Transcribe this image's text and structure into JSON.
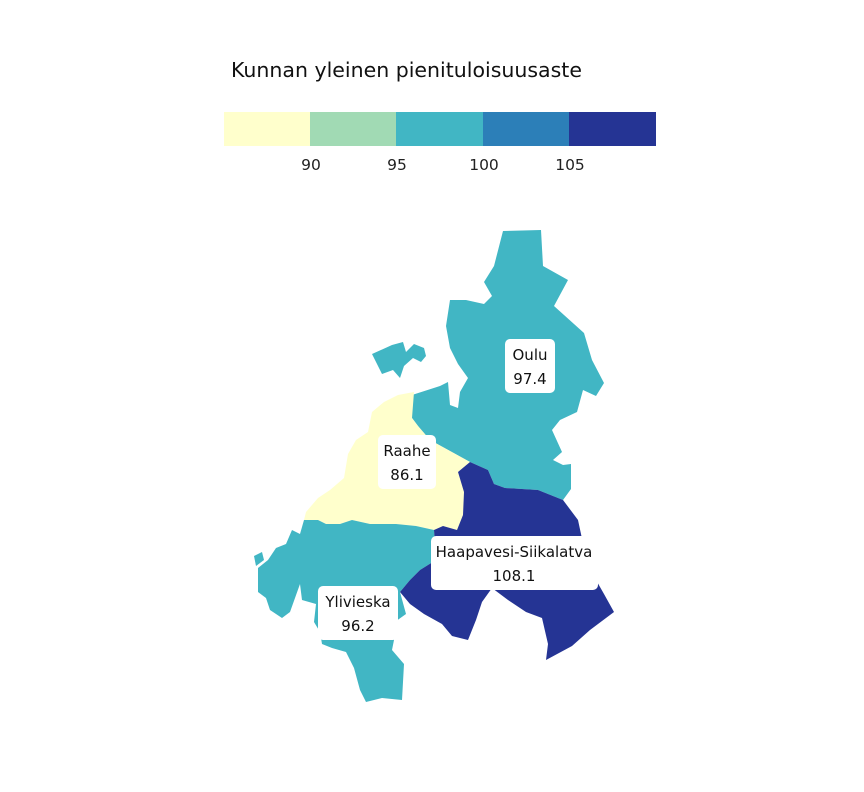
{
  "legend": {
    "title": "Kunnan yleinen pienituloisuusaste",
    "colors": [
      "#ffffcc",
      "#a1dab4",
      "#41b6c4",
      "#2c7fb8",
      "#253494"
    ],
    "breaks": [
      "90",
      "95",
      "100",
      "105"
    ]
  },
  "regions": [
    {
      "name": "Oulu",
      "value": "97.4",
      "color": "#41b6c4"
    },
    {
      "name": "Raahe",
      "value": "86.1",
      "color": "#ffffcc"
    },
    {
      "name": "Ylivieska",
      "value": "96.2",
      "color": "#41b6c4"
    },
    {
      "name": "Haapavesi-Siikalatva",
      "value": "108.1",
      "color": "#253494"
    }
  ]
}
